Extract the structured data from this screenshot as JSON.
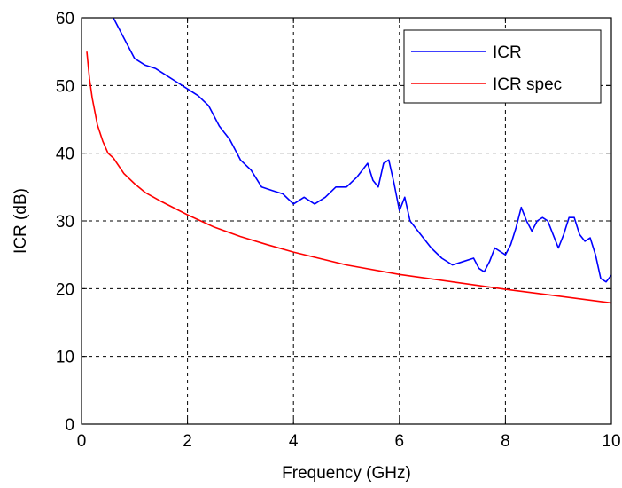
{
  "chart_data": {
    "type": "line",
    "title": "",
    "xlabel": "Frequency (GHz)",
    "ylabel": "ICR (dB)",
    "xlim": [
      0,
      10
    ],
    "ylim": [
      0,
      60
    ],
    "xticks": [
      "0",
      "2",
      "4",
      "6",
      "8",
      "10"
    ],
    "yticks": [
      "0",
      "10",
      "20",
      "30",
      "40",
      "50",
      "60"
    ],
    "grid": true,
    "legend_position": "top-right",
    "series": [
      {
        "name": "ICR",
        "color": "#0000ff",
        "x": [
          0.6,
          0.8,
          1.0,
          1.2,
          1.4,
          1.6,
          1.8,
          2.0,
          2.2,
          2.4,
          2.6,
          2.8,
          3.0,
          3.2,
          3.4,
          3.6,
          3.8,
          4.0,
          4.2,
          4.4,
          4.6,
          4.8,
          5.0,
          5.2,
          5.4,
          5.5,
          5.6,
          5.7,
          5.8,
          5.9,
          6.0,
          6.1,
          6.2,
          6.3,
          6.4,
          6.6,
          6.8,
          7.0,
          7.2,
          7.4,
          7.5,
          7.6,
          7.7,
          7.8,
          8.0,
          8.1,
          8.2,
          8.3,
          8.4,
          8.5,
          8.6,
          8.7,
          8.8,
          8.9,
          9.0,
          9.1,
          9.2,
          9.3,
          9.4,
          9.5,
          9.6,
          9.7,
          9.8,
          9.9,
          10.0
        ],
        "y": [
          60,
          57,
          54,
          53,
          52.5,
          51.5,
          50.5,
          49.5,
          48.5,
          47,
          44,
          42,
          39,
          37.5,
          35,
          34.5,
          34,
          32.5,
          33.5,
          32.5,
          33.5,
          35,
          35,
          36.5,
          38.5,
          36,
          35,
          38.5,
          39,
          35.5,
          31.5,
          33.5,
          30,
          29,
          28,
          26,
          24.5,
          23.5,
          24,
          24.5,
          23,
          22.5,
          24,
          26,
          25,
          26.5,
          29,
          32,
          30,
          28.5,
          30,
          30.5,
          30,
          28,
          26,
          28,
          30.5,
          30.5,
          28,
          27,
          27.5,
          25,
          21.5,
          21,
          22
        ]
      },
      {
        "name": "ICR spec",
        "color": "#ff0000",
        "x": [
          0.1,
          0.15,
          0.2,
          0.3,
          0.4,
          0.5,
          0.6,
          0.8,
          1.0,
          1.2,
          1.5,
          2.0,
          2.5,
          3.0,
          3.5,
          4.0,
          5.0,
          6.0,
          7.0,
          8.0,
          9.0,
          10.0
        ],
        "y": [
          55,
          51,
          48.2,
          44.2,
          41.8,
          40,
          39.3,
          37,
          35.5,
          34.2,
          32.9,
          30.9,
          29.1,
          27.7,
          26.5,
          25.4,
          23.5,
          22.1,
          21,
          19.9,
          18.9,
          17.9
        ]
      }
    ]
  }
}
